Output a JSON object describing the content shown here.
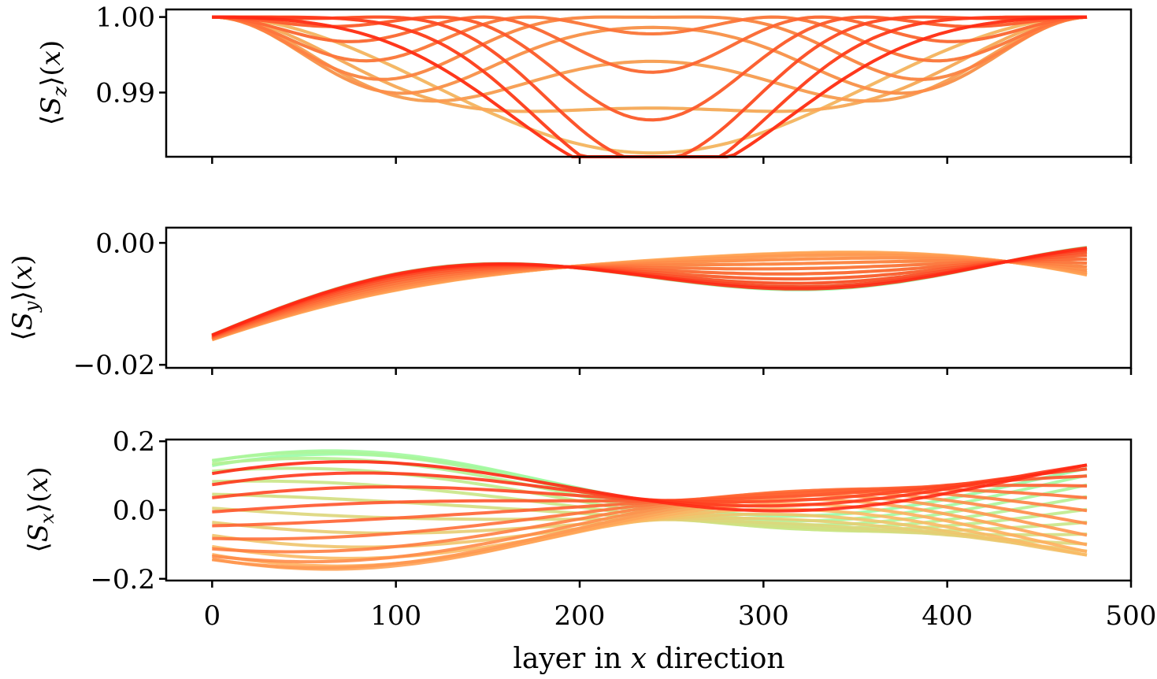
{
  "figure": {
    "xlabel_parts": [
      "layer in ",
      "x",
      " direction"
    ]
  },
  "chart_data": [
    {
      "type": "line",
      "ylabel_parts": [
        "⟨",
        "S",
        "z",
        "⟩(",
        "x",
        ")"
      ],
      "xlim": [
        -25,
        500
      ],
      "ylim": [
        0.9815,
        1.001
      ],
      "xticks": [
        0,
        100,
        200,
        300,
        400,
        500
      ],
      "yticks": [
        {
          "value": 0.99,
          "label": "0.99"
        },
        {
          "value": 1.0,
          "label": "1.00"
        }
      ],
      "x_range": [
        0,
        478
      ],
      "curve_family": "Sz",
      "n_curves": 22,
      "colormap": "rainbow (blue → green → yellow → orange → red)"
    },
    {
      "type": "line",
      "ylabel_parts": [
        "⟨",
        "S",
        "y",
        "⟩(",
        "x",
        ")"
      ],
      "xlim": [
        -25,
        500
      ],
      "ylim": [
        -0.0205,
        0.0025
      ],
      "xticks": [
        0,
        100,
        200,
        300,
        400,
        500
      ],
      "yticks": [
        {
          "value": -0.02,
          "label": "−0.02"
        },
        {
          "value": 0.0,
          "label": "0.00"
        }
      ],
      "x_range": [
        0,
        478
      ],
      "curve_family": "Sy",
      "n_curves": 22,
      "colormap": "rainbow (blue → green → yellow → orange → red)"
    },
    {
      "type": "line",
      "ylabel_parts": [
        "⟨",
        "S",
        "x",
        "⟩(",
        "x",
        ")"
      ],
      "xlim": [
        -25,
        500
      ],
      "ylim": [
        -0.205,
        0.205
      ],
      "xticks": [
        0,
        100,
        200,
        300,
        400,
        500
      ],
      "xticklabels": [
        "0",
        "100",
        "200",
        "300",
        "400",
        "500"
      ],
      "yticks": [
        {
          "value": -0.2,
          "label": "−0.2"
        },
        {
          "value": 0.0,
          "label": "0.0"
        },
        {
          "value": 0.2,
          "label": "0.2"
        }
      ],
      "x_range": [
        0,
        478
      ],
      "curve_family": "Sx",
      "n_curves": 22,
      "colormap": "rainbow (blue → green → yellow → orange → red)"
    }
  ]
}
